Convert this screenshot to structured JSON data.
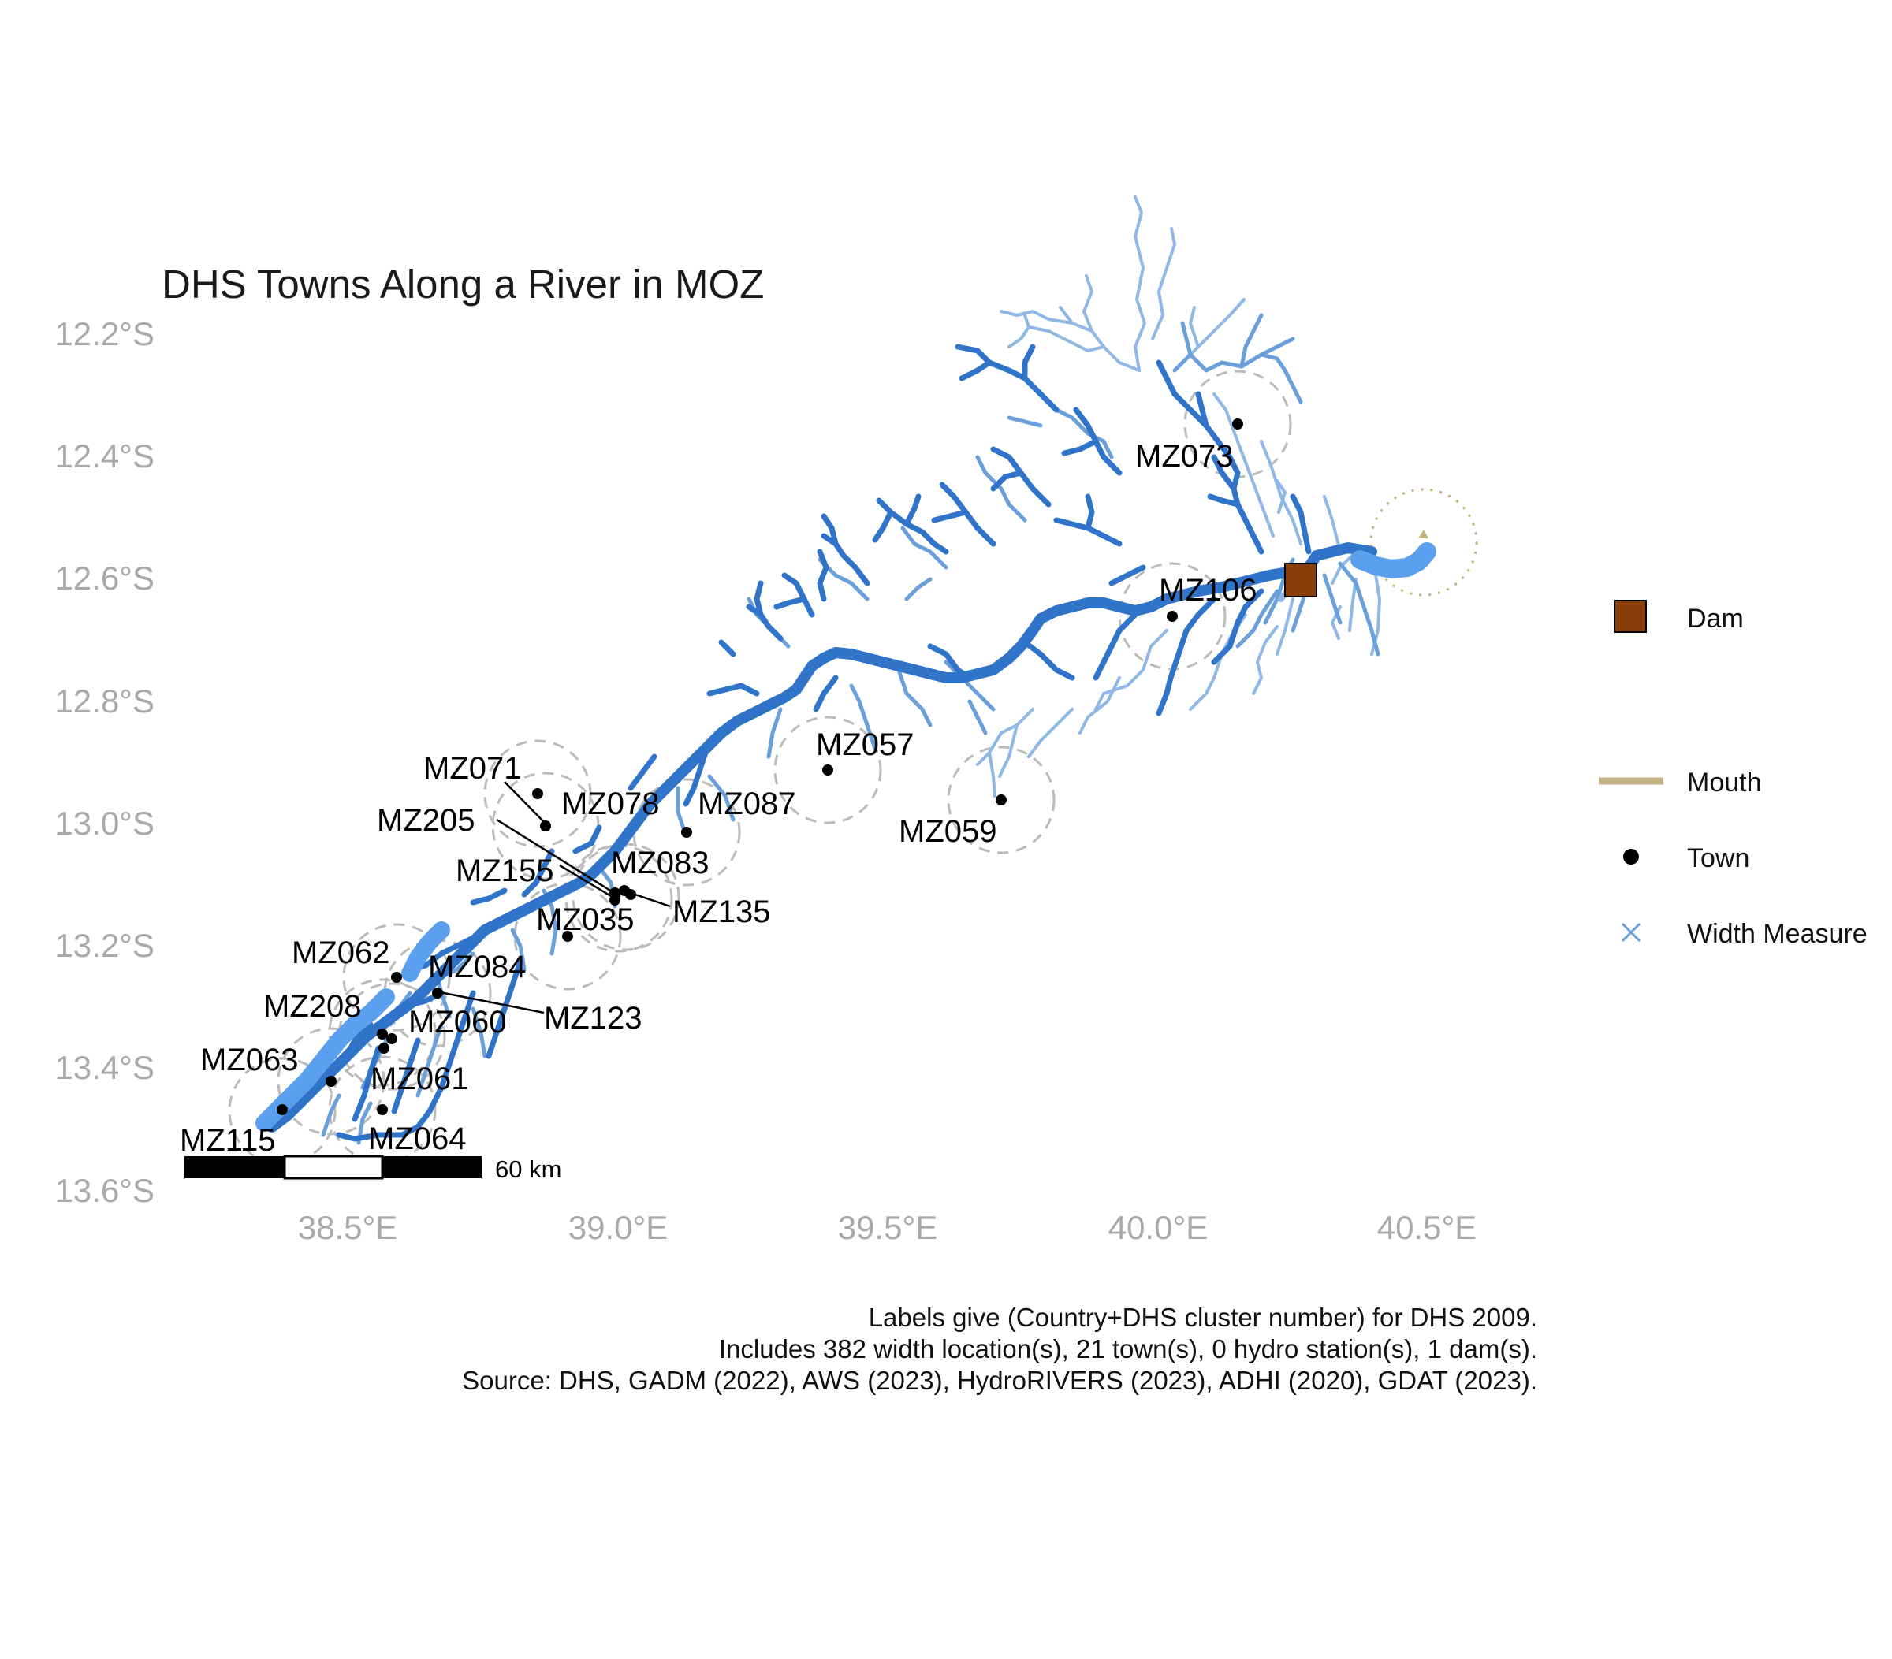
{
  "title": "DHS Towns Along a River in MOZ",
  "y_axis_labels": [
    "12.2°S",
    "12.4°S",
    "12.6°S",
    "12.8°S",
    "13.0°S",
    "13.2°S",
    "13.4°S",
    "13.6°S"
  ],
  "x_axis_labels": [
    "38.5°E",
    "39.0°E",
    "39.5°E",
    "40.0°E",
    "40.5°E"
  ],
  "y_axis_values": [
    -12.2,
    -12.4,
    -12.6,
    -12.8,
    -13.0,
    -13.2,
    -13.4,
    -13.6
  ],
  "x_axis_values": [
    38.5,
    39.0,
    39.5,
    40.0,
    40.5
  ],
  "scale_bar_label": "60 km",
  "legend": {
    "dam": "Dam",
    "mouth": "Mouth",
    "town": "Town",
    "width_measure": "Width Measure"
  },
  "colors": {
    "river_main": "#2f74c8",
    "river_trib": "#6a9fda",
    "river_light": "#8fb8e6",
    "lake": "#5aa0ee",
    "dam": "#8b3e0a",
    "mouth": "#c3b083",
    "town": "#000000",
    "buffer": "#bbbbbb",
    "axis_text": "#a9a9a9"
  },
  "dam": {
    "lon": 40.27,
    "lat": -12.605
  },
  "mouth": {
    "lon": 40.47,
    "lat": -12.555
  },
  "towns": [
    {
      "id": "MZ073",
      "lon": 40.15,
      "lat": -12.345
    },
    {
      "id": "MZ106",
      "lon": 40.03,
      "lat": -12.665
    },
    {
      "id": "MZ057",
      "lon": 39.39,
      "lat": -12.915
    },
    {
      "id": "MZ059",
      "lon": 39.71,
      "lat": -12.965
    },
    {
      "id": "MZ071",
      "lon": 38.86,
      "lat": -12.955
    },
    {
      "id": "MZ078",
      "lon": 38.87,
      "lat": -13.005
    },
    {
      "id": "MZ087",
      "lon": 39.13,
      "lat": -13.015
    },
    {
      "id": "MZ205",
      "lon": 39.0,
      "lat": -13.115
    },
    {
      "id": "MZ083",
      "lon": 39.02,
      "lat": -13.11
    },
    {
      "id": "MZ155",
      "lon": 39.0,
      "lat": -13.125
    },
    {
      "id": "MZ135",
      "lon": 39.04,
      "lat": -13.12
    },
    {
      "id": "MZ035",
      "lon": 38.92,
      "lat": -13.18
    },
    {
      "id": "MZ062",
      "lon": 38.59,
      "lat": -13.255
    },
    {
      "id": "MZ084",
      "lon": 38.67,
      "lat": -13.28
    },
    {
      "id": "MZ123",
      "lon": 38.68,
      "lat": -13.285
    },
    {
      "id": "MZ208",
      "lon": 38.57,
      "lat": -13.345
    },
    {
      "id": "MZ060",
      "lon": 38.59,
      "lat": -13.35
    },
    {
      "id": "MZ061",
      "lon": 38.57,
      "lat": -13.37
    },
    {
      "id": "MZ063",
      "lon": 38.46,
      "lat": -13.425
    },
    {
      "id": "MZ115",
      "lon": 38.39,
      "lat": -13.475
    },
    {
      "id": "MZ064",
      "lon": 38.57,
      "lat": -13.47
    }
  ],
  "caption": [
    "Labels give (Country+DHS cluster number) for DHS 2009.",
    "Includes 382 width location(s), 21 town(s), 0 hydro station(s), 1 dam(s).",
    "Source: DHS, GADM (2022), AWS (2023), HydroRIVERS (2023), ADHI (2020), GDAT (2023)."
  ]
}
